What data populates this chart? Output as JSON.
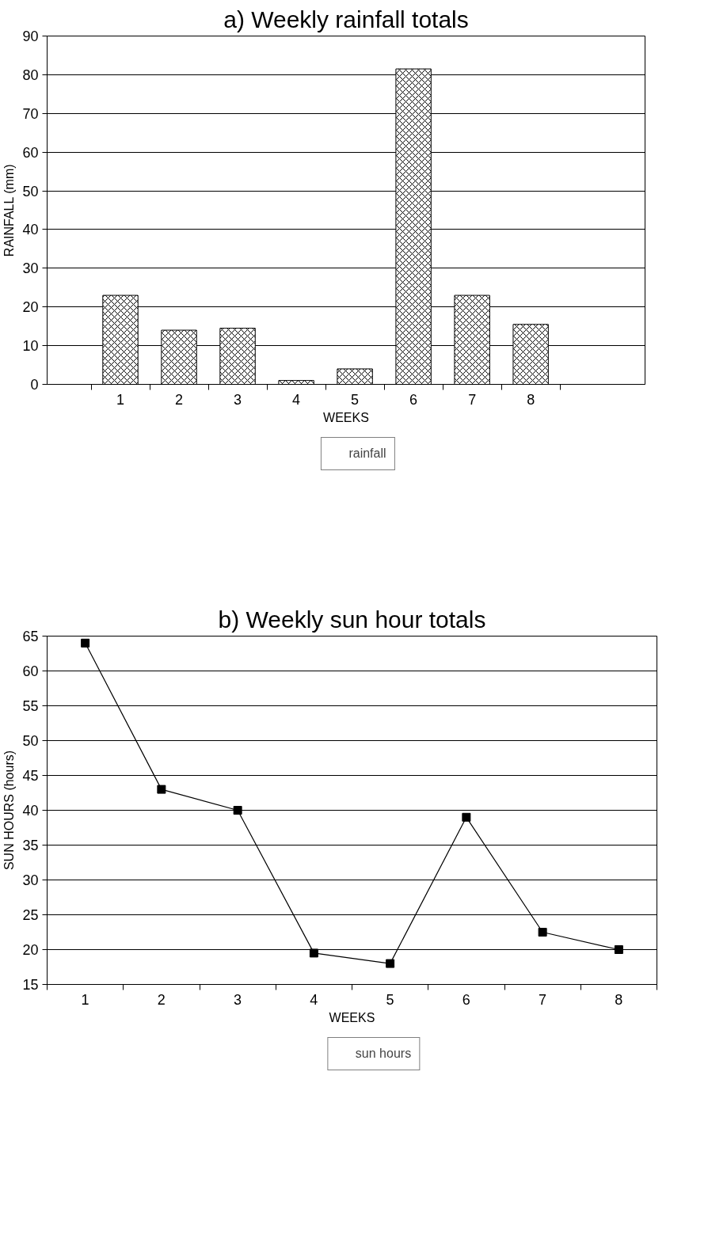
{
  "chart_data": [
    {
      "type": "bar",
      "title": "a) Weekly rainfall totals",
      "xlabel": "WEEKS",
      "ylabel": "RAINFALL (mm)",
      "categories": [
        "1",
        "2",
        "3",
        "4",
        "5",
        "6",
        "7",
        "8"
      ],
      "series": [
        {
          "name": "rainfall",
          "color": "#000000",
          "values": [
            23,
            14,
            14.5,
            1,
            4,
            81.5,
            23,
            15.5
          ]
        }
      ],
      "ylim": [
        0,
        90
      ],
      "yticks": [
        0,
        10,
        20,
        30,
        40,
        50,
        60,
        70,
        80,
        90
      ],
      "grid": "y",
      "legend": "bottom"
    },
    {
      "type": "line",
      "title": "b) Weekly sun hour totals",
      "xlabel": "WEEKS",
      "ylabel": "SUN HOURS (hours)",
      "categories": [
        "1",
        "2",
        "3",
        "4",
        "5",
        "6",
        "7",
        "8"
      ],
      "series": [
        {
          "name": "sun hours",
          "color": "#000000",
          "values": [
            64,
            43,
            40,
            19.5,
            18,
            39,
            22.5,
            20
          ]
        }
      ],
      "ylim": [
        15,
        65
      ],
      "yticks": [
        15,
        20,
        25,
        30,
        35,
        40,
        45,
        50,
        55,
        60,
        65
      ],
      "grid": "y",
      "legend": "bottom",
      "marker": "square",
      "line_style": "solid"
    }
  ]
}
